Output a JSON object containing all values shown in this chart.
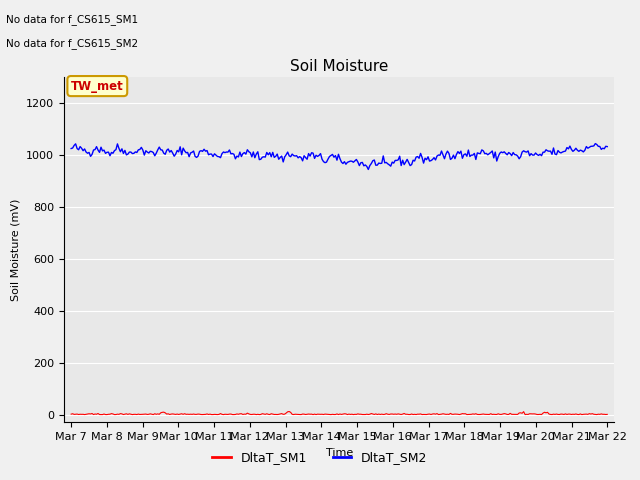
{
  "title": "Soil Moisture",
  "xlabel": "Time",
  "ylabel": "Soil Moisture (mV)",
  "ylim": [
    -30,
    1300
  ],
  "yticks": [
    0,
    200,
    400,
    600,
    800,
    1000,
    1200
  ],
  "annotations": [
    "No data for f_CS615_SM1",
    "No data for f_CS615_SM2"
  ],
  "box_label": "TW_met",
  "box_facecolor": "#ffffcc",
  "box_edgecolor": "#cc9900",
  "xtick_labels": [
    "Mar 7",
    "Mar 8",
    "Mar 9",
    "Mar 10",
    "Mar 11",
    "Mar 12",
    "Mar 13",
    "Mar 14",
    "Mar 15",
    "Mar 16",
    "Mar 17",
    "Mar 18",
    "Mar 19",
    "Mar 20",
    "Mar 21",
    "Mar 22"
  ],
  "sm1_color": "#ff0000",
  "sm2_color": "#0000ff",
  "sm1_label": "DltaT_SM1",
  "sm2_label": "DltaT_SM2",
  "bg_color": "#e8e8e8",
  "grid_color": "#ffffff",
  "fig_bg": "#f0f0f0",
  "title_fontsize": 11,
  "label_fontsize": 8,
  "tick_fontsize": 8
}
